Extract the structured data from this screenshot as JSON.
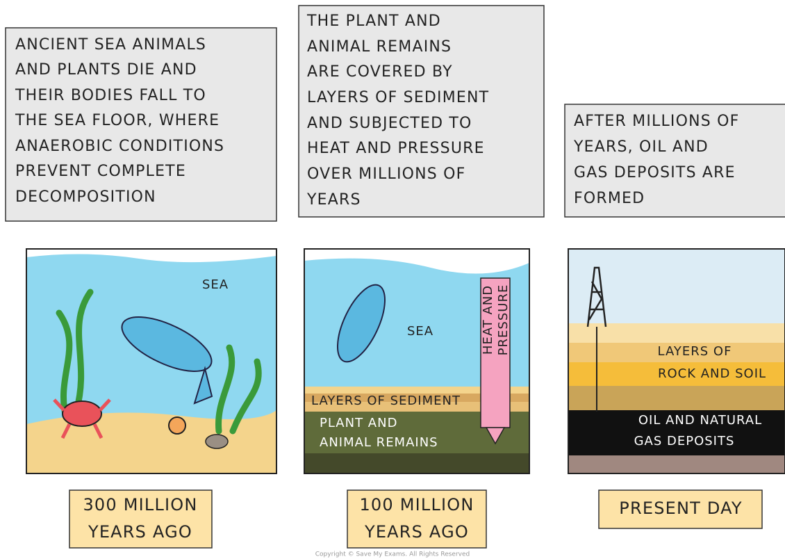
{
  "panels": [
    {
      "caption": [
        "ANCIENT SEA ANIMALS",
        "AND PLANTS DIE AND",
        "THEIR BODIES FALL TO",
        "THE SEA FLOOR, WHERE",
        "ANAEROBIC CONDITIONS",
        "PREVENT COMPLETE",
        "DECOMPOSITION"
      ],
      "scene": {
        "sea": "SEA"
      },
      "time": [
        "300 MILLION",
        "YEARS AGO"
      ]
    },
    {
      "caption": [
        "THE PLANT AND",
        "ANIMAL REMAINS",
        "ARE COVERED BY",
        "LAYERS OF SEDIMENT",
        "AND SUBJECTED TO",
        "HEAT AND PRESSURE",
        "OVER MILLIONS OF",
        "YEARS"
      ],
      "scene": {
        "sea": "SEA",
        "arrow": [
          "HEAT AND",
          "PRESSURE"
        ],
        "sediment": "LAYERS OF SEDIMENT",
        "remains": [
          "PLANT AND",
          "ANIMAL REMAINS"
        ]
      },
      "time": [
        "100 MILLION",
        "YEARS AGO"
      ]
    },
    {
      "caption": [
        "AFTER MILLIONS OF",
        "YEARS, OIL AND",
        "GAS DEPOSITS ARE",
        "FORMED"
      ],
      "scene": {
        "rock": [
          "LAYERS OF",
          "ROCK AND SOIL"
        ],
        "deposits": [
          "OIL AND NATURAL",
          "GAS DEPOSITS"
        ]
      },
      "time": [
        "PRESENT DAY"
      ]
    }
  ],
  "copyright": "Copyright © Save My Exams. All Rights Reserved"
}
